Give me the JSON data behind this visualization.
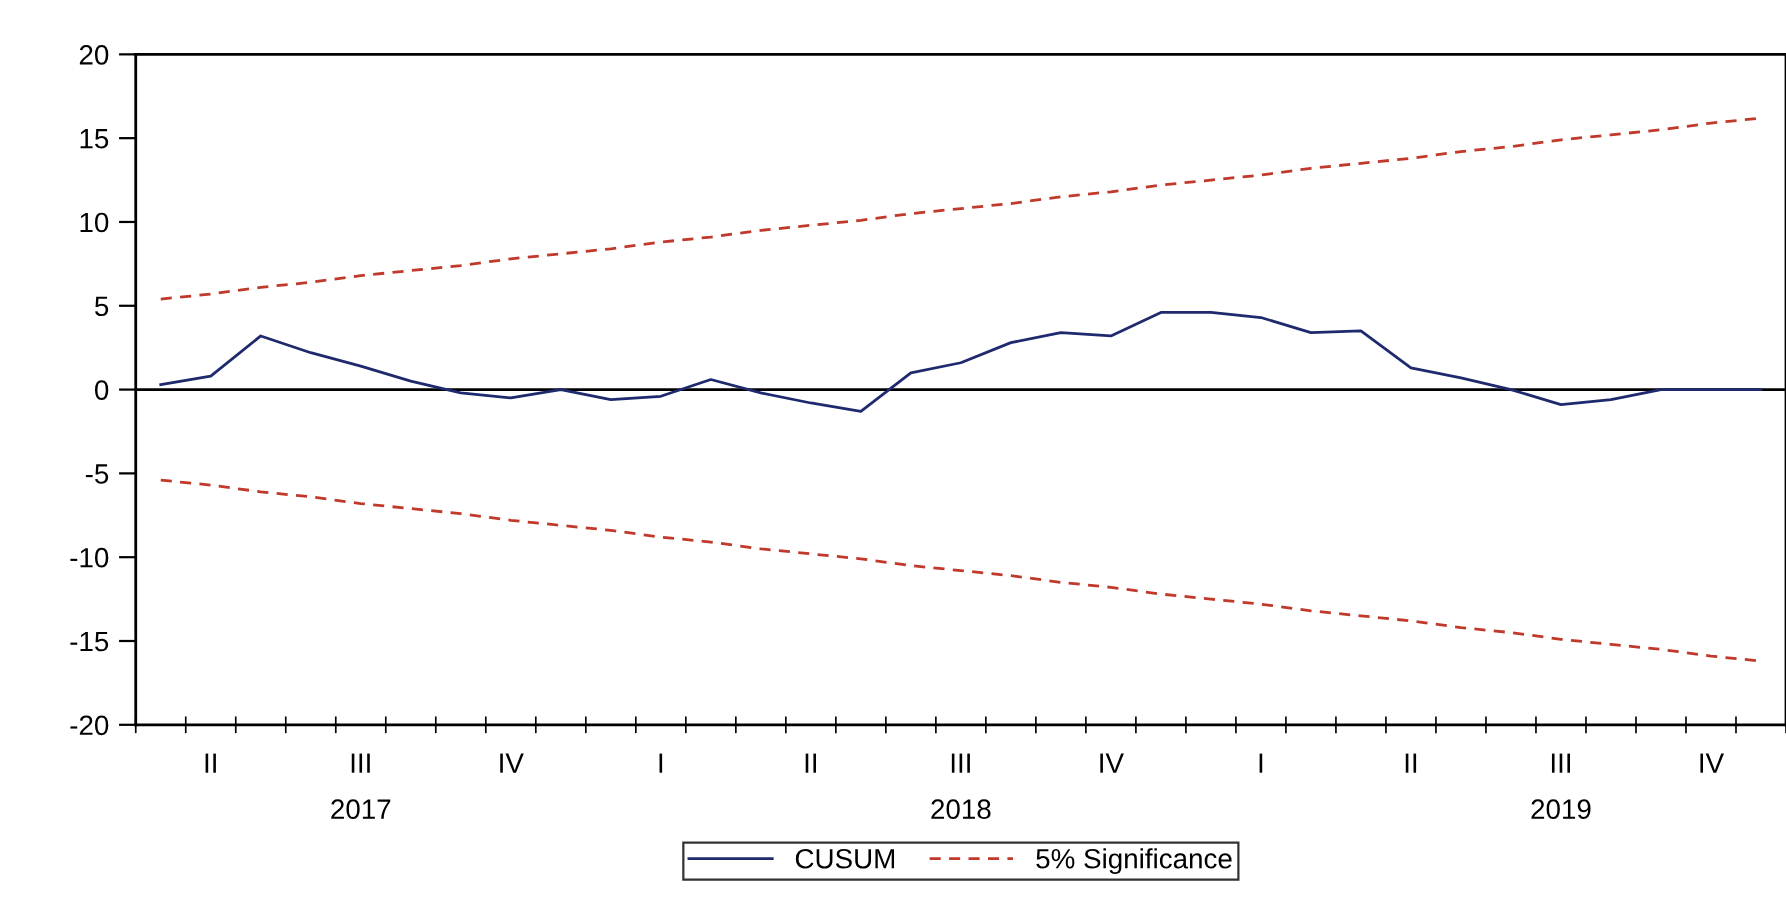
{
  "chart_data": {
    "type": "line",
    "categories": [
      null,
      "II",
      null,
      null,
      "III\n2017",
      null,
      null,
      "IV",
      null,
      null,
      "I",
      null,
      null,
      "II",
      null,
      null,
      "III\n2018",
      null,
      null,
      "IV",
      null,
      null,
      "I",
      null,
      null,
      "II",
      null,
      null,
      "III\n2019",
      null,
      null,
      "IV",
      null
    ],
    "series": [
      {
        "name": "CUSUM",
        "color": "#1f2a6e",
        "line_style": "solid",
        "values": [
          0.3,
          0.8,
          3.2,
          2.2,
          1.4,
          0.5,
          -0.2,
          -0.5,
          0.0,
          -0.6,
          -0.4,
          0.6,
          -0.2,
          -0.8,
          -1.3,
          1.0,
          1.6,
          2.8,
          3.4,
          3.2,
          4.6,
          4.6,
          4.3,
          3.4,
          3.5,
          1.3,
          0.7,
          0.0,
          -0.9,
          -0.6,
          0.0,
          0.0,
          0.0
        ]
      },
      {
        "name": "5% Significance",
        "color": "#c0392b",
        "line_style": "dashed",
        "values": [
          5.4,
          5.7,
          6.1,
          6.4,
          6.8,
          7.1,
          7.4,
          7.8,
          8.1,
          8.4,
          8.8,
          9.1,
          9.5,
          9.8,
          10.1,
          10.5,
          10.8,
          11.1,
          11.5,
          11.8,
          12.2,
          12.5,
          12.8,
          13.2,
          13.5,
          13.8,
          14.2,
          14.5,
          14.9,
          15.2,
          15.5,
          15.9,
          16.2
        ]
      },
      {
        "color": "#c0392b",
        "line_style": "dashed",
        "values": [
          -5.4,
          -5.7,
          -6.1,
          -6.4,
          -6.8,
          -7.1,
          -7.4,
          -7.8,
          -8.1,
          -8.4,
          -8.8,
          -9.1,
          -9.5,
          -9.8,
          -10.1,
          -10.5,
          -10.8,
          -11.1,
          -11.5,
          -11.8,
          -12.2,
          -12.5,
          -12.8,
          -13.2,
          -13.5,
          -13.8,
          -14.2,
          -14.5,
          -14.9,
          -15.2,
          -15.5,
          -15.9,
          -16.2
        ]
      }
    ],
    "ylim": [
      -20,
      20
    ],
    "yticks": [
      -20,
      -15,
      -10,
      -5,
      0,
      5,
      10,
      15,
      20
    ],
    "ref_lines": [
      {
        "axis": "y",
        "value": 0,
        "color": "#000000"
      }
    ],
    "grid": false,
    "legend": "bottom",
    "marker": "none"
  }
}
